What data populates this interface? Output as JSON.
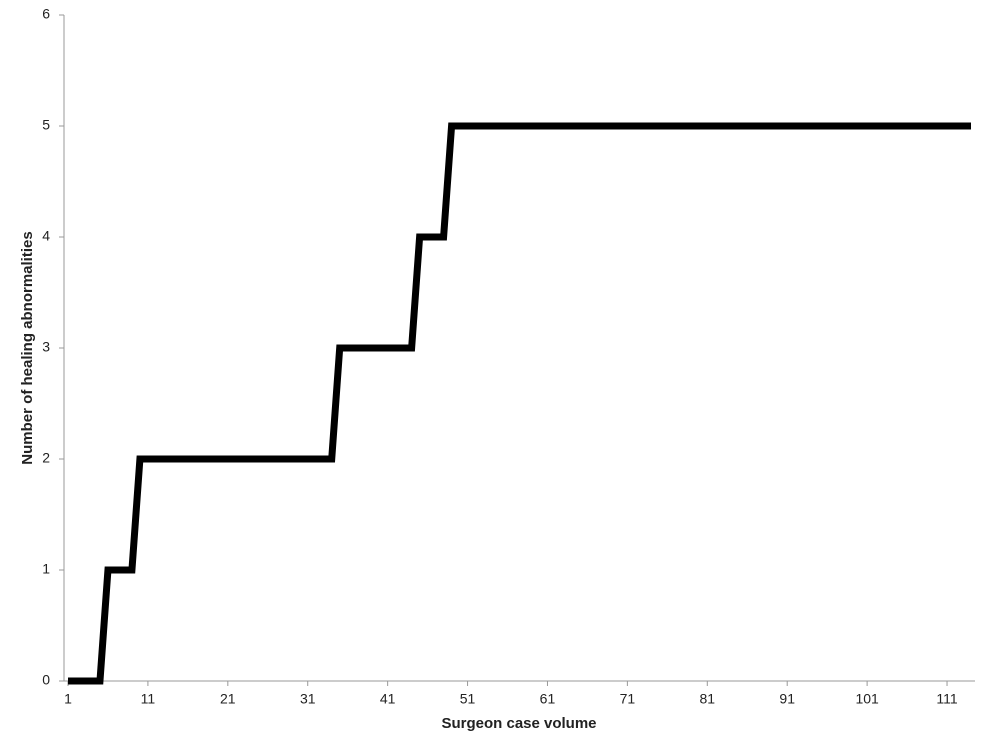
{
  "chart_data": {
    "type": "line",
    "x_label": "Surgeon case volume",
    "y_label": "Number of healing abnormalities",
    "x": [
      1,
      5,
      6,
      9,
      10,
      34,
      35,
      44,
      45,
      48,
      49,
      114
    ],
    "series": [
      {
        "color": "#000000",
        "values": [
          0,
          0,
          1,
          1,
          2,
          2,
          3,
          3,
          4,
          4,
          5,
          5
        ]
      }
    ],
    "xlim": [
      0.5,
      114.5
    ],
    "xticks": [
      1,
      11,
      21,
      31,
      41,
      51,
      61,
      71,
      81,
      91,
      101,
      111
    ],
    "ylim": [
      0,
      6
    ],
    "yticks": [
      0,
      1,
      2,
      3,
      4,
      5,
      6
    ],
    "grid": false
  }
}
